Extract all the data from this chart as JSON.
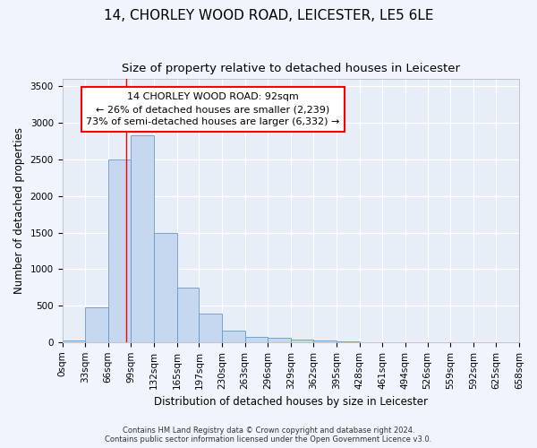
{
  "title": "14, CHORLEY WOOD ROAD, LEICESTER, LE5 6LE",
  "subtitle": "Size of property relative to detached houses in Leicester",
  "xlabel": "Distribution of detached houses by size in Leicester",
  "ylabel": "Number of detached properties",
  "bar_color": "#c5d8f0",
  "bar_edge_color": "#6699cc",
  "background_color": "#e8eef8",
  "property_size": 92,
  "annotation_title": "14 CHORLEY WOOD ROAD: 92sqm",
  "annotation_line1": "← 26% of detached houses are smaller (2,239)",
  "annotation_line2": "73% of semi-detached houses are larger (6,332) →",
  "footer_line1": "Contains HM Land Registry data © Crown copyright and database right 2024.",
  "footer_line2": "Contains public sector information licensed under the Open Government Licence v3.0.",
  "bin_edges": [
    0,
    33,
    66,
    99,
    132,
    165,
    197,
    230,
    263,
    296,
    329,
    362,
    395,
    428,
    461,
    494,
    526,
    559,
    592,
    625,
    658
  ],
  "bin_labels": [
    "0sqm",
    "33sqm",
    "66sqm",
    "99sqm",
    "132sqm",
    "165sqm",
    "197sqm",
    "230sqm",
    "263sqm",
    "296sqm",
    "329sqm",
    "362sqm",
    "395sqm",
    "428sqm",
    "461sqm",
    "494sqm",
    "526sqm",
    "559sqm",
    "592sqm",
    "625sqm",
    "658sqm"
  ],
  "bar_heights": [
    20,
    480,
    2500,
    2830,
    1500,
    750,
    390,
    160,
    75,
    55,
    40,
    25,
    10,
    0,
    0,
    0,
    0,
    0,
    0,
    0
  ],
  "ylim": [
    0,
    3600
  ],
  "yticks": [
    0,
    500,
    1000,
    1500,
    2000,
    2500,
    3000,
    3500
  ],
  "red_line_x": 92,
  "grid_color": "#ffffff",
  "title_fontsize": 11,
  "subtitle_fontsize": 9.5,
  "axis_label_fontsize": 8.5,
  "tick_fontsize": 7.5,
  "annotation_fontsize": 8,
  "footer_fontsize": 6
}
